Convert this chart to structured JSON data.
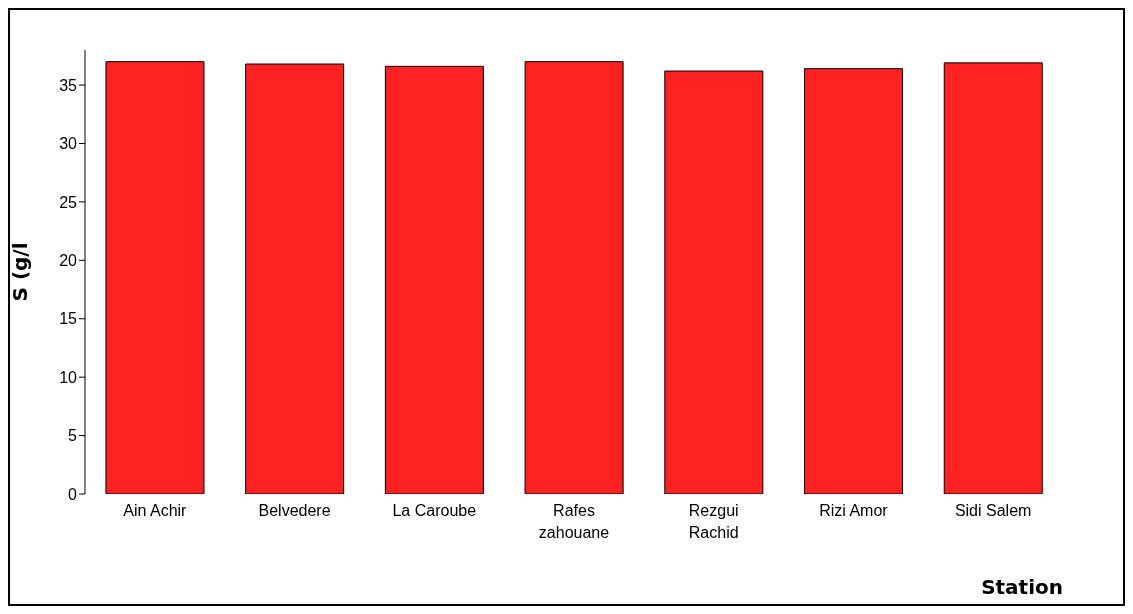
{
  "chart_data": {
    "type": "bar",
    "xlabel": "Station",
    "ylabel": "S (g/l",
    "categories": [
      "Ain Achir",
      "Belvedere",
      "La Caroube",
      "Rafes zahouane",
      "Rezgui Rachid",
      "Rizi Amor",
      "Sidi Salem"
    ],
    "values": [
      37.0,
      36.8,
      36.6,
      37.0,
      36.2,
      36.4,
      36.9
    ],
    "color": "#ff2222",
    "ylim": [
      0,
      38
    ],
    "yticks": [
      0,
      5,
      10,
      15,
      20,
      25,
      30,
      35
    ],
    "grid": false
  }
}
